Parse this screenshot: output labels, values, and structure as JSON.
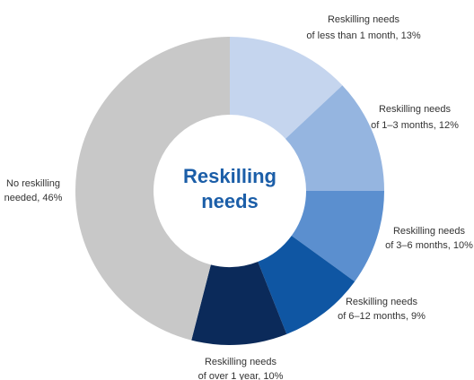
{
  "chart_data": {
    "type": "donut",
    "center_label": [
      "Reskilling",
      "needs"
    ],
    "categories": [
      "Reskilling needs of less than 1 month",
      "Reskilling needs of 1–3 months",
      "Reskilling needs of 3–6 months",
      "Reskilling needs of 6–12 months",
      "Reskilling needs of over 1 year",
      "No reskilling needed"
    ],
    "values": [
      13,
      12,
      10,
      9,
      10,
      46
    ],
    "value_labels": [
      [
        "Reskilling needs",
        "of less than 1 month, 13%"
      ],
      [
        "Reskilling needs",
        "of 1–3 months, 12%"
      ],
      [
        "Reskilling needs",
        "of 3–6 months, 10%"
      ],
      [
        "Reskilling needs",
        "of 6–12 months, 9%"
      ],
      [
        "Reskilling needs",
        "of over 1 year, 10%"
      ],
      [
        "No reskilling",
        "needed, 46%"
      ]
    ],
    "colors": [
      "#c5d5ee",
      "#95b5e0",
      "#5b8fcf",
      "#0f56a3",
      "#0b2a5a",
      "#c8c8c8"
    ]
  }
}
